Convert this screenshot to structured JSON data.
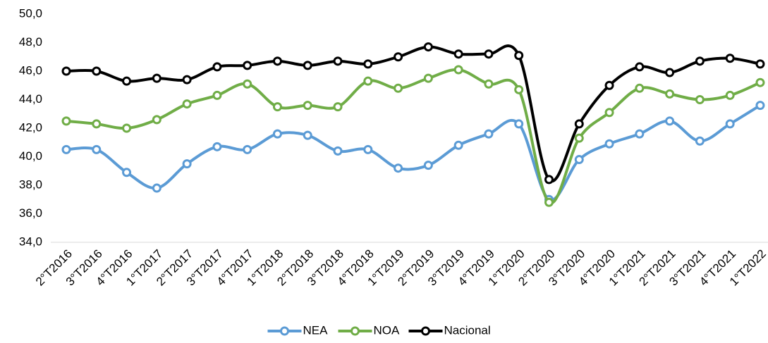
{
  "chart_data": {
    "type": "line",
    "categories": [
      "2°T2016",
      "3°T2016",
      "4°T2016",
      "1°T2017",
      "2°T2017",
      "3°T2017",
      "4°T2017",
      "1°T2018",
      "2°T2018",
      "3°T2018",
      "4°T2018",
      "1°T2019",
      "2°T2019",
      "3°T2019",
      "4°T2019",
      "1°T2020",
      "2°T2020",
      "3°T2020",
      "4°T2020",
      "1°T2021",
      "2°T2021",
      "3°T2021",
      "4°T2021",
      "1°T2022"
    ],
    "series": [
      {
        "name": "NEA",
        "color": "#5b9bd5",
        "values": [
          40.5,
          40.5,
          38.9,
          37.8,
          39.5,
          40.7,
          40.5,
          41.6,
          41.5,
          40.4,
          40.5,
          39.2,
          39.4,
          40.8,
          41.6,
          42.3,
          37.0,
          39.8,
          40.9,
          41.6,
          42.5,
          41.1,
          42.3,
          43.6
        ]
      },
      {
        "name": "NOA",
        "color": "#70ad47",
        "values": [
          42.5,
          42.3,
          42.0,
          42.6,
          43.7,
          44.3,
          45.1,
          43.5,
          43.6,
          43.5,
          45.3,
          44.8,
          45.5,
          46.1,
          45.1,
          44.7,
          36.8,
          41.3,
          43.1,
          44.8,
          44.4,
          44.0,
          44.3,
          45.2
        ]
      },
      {
        "name": "Nacional",
        "color": "#000000",
        "values": [
          46.0,
          46.0,
          45.3,
          45.5,
          45.4,
          46.3,
          46.4,
          46.7,
          46.4,
          46.7,
          46.5,
          47.0,
          47.7,
          47.2,
          47.2,
          47.1,
          38.4,
          42.3,
          45.0,
          46.3,
          45.9,
          46.7,
          46.9,
          46.5
        ]
      }
    ],
    "ylim": [
      34,
      50
    ],
    "yticks": [
      {
        "value": 34,
        "label": "34,0"
      },
      {
        "value": 36,
        "label": "36,0"
      },
      {
        "value": 38,
        "label": "38,0"
      },
      {
        "value": 40,
        "label": "40,0"
      },
      {
        "value": 42,
        "label": "42,0"
      },
      {
        "value": 44,
        "label": "44,0"
      },
      {
        "value": 46,
        "label": "46,0"
      },
      {
        "value": 48,
        "label": "48,0"
      },
      {
        "value": 50,
        "label": "50,0"
      }
    ],
    "grid": false,
    "legend": "bottom"
  }
}
